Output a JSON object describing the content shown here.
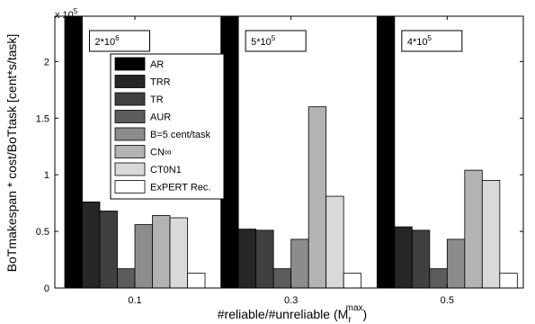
{
  "chart_data": {
    "type": "bar",
    "xlabel": "#reliable/#unreliable (M",
    "xlabel_sub": "r",
    "xlabel_sup": "max",
    "xlabel_close": ")",
    "ylabel": "BoTmakespan * cost/BoTtask [cent*s/task]",
    "y_multiplier_base": "x 10",
    "y_multiplier_exp": "5",
    "ylim": [
      0,
      2.4
    ],
    "yticks": [
      0,
      0.5,
      1,
      1.5,
      2
    ],
    "ytick_labels": [
      "0",
      "0.5",
      "1",
      "1.5",
      "2"
    ],
    "categories": [
      "0.1",
      "0.3",
      "0.5"
    ],
    "annotations": [
      "2*10^6",
      "5*10^5",
      "4*10^5"
    ],
    "series": [
      {
        "name": "AR",
        "color": "#000000",
        "values": [
          2.4,
          2.4,
          2.4
        ]
      },
      {
        "name": "TRR",
        "color": "#262626",
        "values": [
          0.76,
          0.52,
          0.54
        ]
      },
      {
        "name": "TR",
        "color": "#404040",
        "values": [
          0.68,
          0.51,
          0.51
        ]
      },
      {
        "name": "AUR",
        "color": "#5c5c5c",
        "values": [
          0.17,
          0.17,
          0.17
        ]
      },
      {
        "name": "B=5 cent/task",
        "color": "#8c8c8c",
        "values": [
          0.56,
          0.43,
          0.43
        ]
      },
      {
        "name": "CN∞",
        "color": "#b3b3b3",
        "values": [
          0.64,
          1.6,
          1.04
        ]
      },
      {
        "name": "CT0N1",
        "color": "#d9d9d9",
        "values": [
          0.62,
          0.81,
          0.95
        ]
      },
      {
        "name": "ExPERT Rec.",
        "color": "#ffffff",
        "values": [
          0.13,
          0.13,
          0.13
        ]
      }
    ],
    "legend_position": "inside, upper-left of center",
    "grid": false
  }
}
